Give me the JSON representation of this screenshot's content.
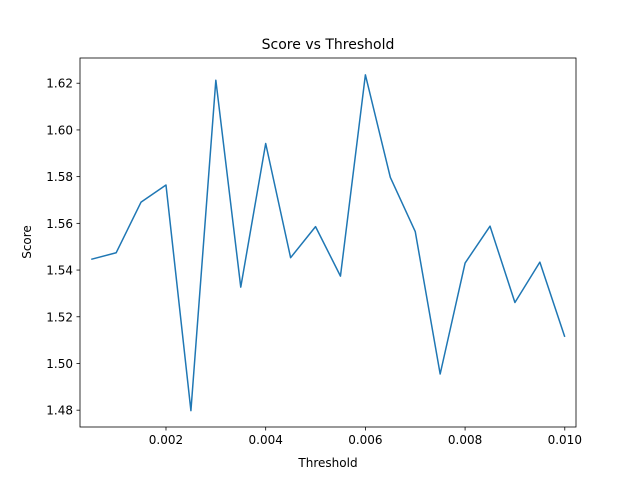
{
  "chart_data": {
    "type": "line",
    "title": "Score vs Threshold",
    "xlabel": "Threshold",
    "ylabel": "Score",
    "xlim": [
      0.000275,
      0.010225
    ],
    "ylim": [
      1.4728,
      1.6308
    ],
    "xticks": [
      0.002,
      0.004,
      0.006,
      0.008,
      0.01
    ],
    "xtick_labels": [
      "0.002",
      "0.004",
      "0.006",
      "0.008",
      "0.010"
    ],
    "yticks": [
      1.48,
      1.5,
      1.52,
      1.54,
      1.56,
      1.58,
      1.6,
      1.62
    ],
    "ytick_labels": [
      "1.48",
      "1.50",
      "1.52",
      "1.54",
      "1.56",
      "1.58",
      "1.60",
      "1.62"
    ],
    "grid": false,
    "color": "#1f77b4",
    "series": [
      {
        "x": [
          0.0005,
          0.001,
          0.0015,
          0.002,
          0.0025,
          0.003,
          0.0035,
          0.004,
          0.0045,
          0.005,
          0.0055,
          0.006,
          0.0065,
          0.007,
          0.0075,
          0.008,
          0.0085,
          0.009,
          0.0095,
          0.01
        ],
        "y": [
          1.5446,
          1.5474,
          1.5691,
          1.5764,
          1.4798,
          1.6213,
          1.5327,
          1.5942,
          1.5453,
          1.5586,
          1.5374,
          1.6236,
          1.5797,
          1.5565,
          1.4955,
          1.543,
          1.5588,
          1.5261,
          1.5434,
          1.5114
        ]
      }
    ]
  }
}
